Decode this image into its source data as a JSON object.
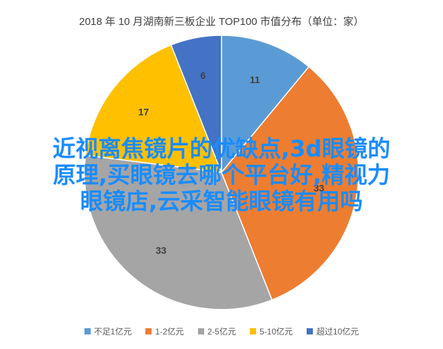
{
  "chart_data": {
    "type": "pie",
    "title": "2018 年 10 月湖南新三板企业 TOP100 市值分布（单位：家）",
    "categories": [
      "不足1亿元",
      "1-2亿元",
      "2-5亿元",
      "5-10亿元",
      "超过10亿元"
    ],
    "values": [
      11,
      33,
      33,
      17,
      6
    ],
    "colors": [
      "#5b9bd5",
      "#ed7d31",
      "#a5a5a5",
      "#ffc000",
      "#4472c4"
    ],
    "legend_position": "bottom"
  },
  "overlay_text": {
    "line1": "近视离焦镜片的优缺点,3d眼镜的",
    "line2": "原理,买眼镜去哪个平台好,精视力",
    "line3": "眼镜店,云采智能眼镜有用吗"
  }
}
